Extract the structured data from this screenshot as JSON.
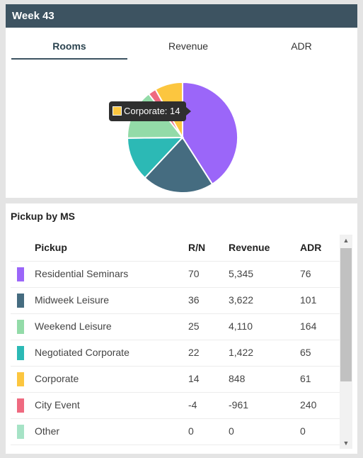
{
  "week_card": {
    "title": "Week 43",
    "tabs": [
      {
        "label": "Rooms",
        "active": true
      },
      {
        "label": "Revenue",
        "active": false
      },
      {
        "label": "ADR",
        "active": false
      }
    ],
    "tooltip": {
      "text": "Corporate: 14",
      "color": "#fcc63f"
    }
  },
  "chart_data": {
    "type": "pie",
    "slices": [
      {
        "label": "Residential Seminars",
        "value": 70,
        "color": "#9b66f9"
      },
      {
        "label": "Midweek Leisure",
        "value": 36,
        "color": "#456c80"
      },
      {
        "label": "Negotiated Corporate",
        "value": 22,
        "color": "#2cb9b5"
      },
      {
        "label": "Weekend Leisure",
        "value": 25,
        "color": "#93dba8"
      },
      {
        "label": "City Event",
        "value": 4,
        "color": "#ef6a80"
      },
      {
        "label": "Corporate",
        "value": 14,
        "color": "#fcc63f"
      }
    ]
  },
  "pickup": {
    "title": "Pickup by MS",
    "headers": {
      "name": "Pickup",
      "rn": "R/N",
      "revenue": "Revenue",
      "adr": "ADR"
    },
    "rows": [
      {
        "name": "Residential Seminars",
        "rn": "70",
        "revenue": "5,345",
        "adr": "76",
        "color": "#9b66f9"
      },
      {
        "name": "Midweek Leisure",
        "rn": "36",
        "revenue": "3,622",
        "adr": "101",
        "color": "#456c80"
      },
      {
        "name": "Weekend Leisure",
        "rn": "25",
        "revenue": "4,110",
        "adr": "164",
        "color": "#93dba8"
      },
      {
        "name": "Negotiated Corporate",
        "rn": "22",
        "revenue": "1,422",
        "adr": "65",
        "color": "#2cb9b5"
      },
      {
        "name": "Corporate",
        "rn": "14",
        "revenue": "848",
        "adr": "61",
        "color": "#fcc63f"
      },
      {
        "name": "City Event",
        "rn": "-4",
        "revenue": "-961",
        "adr": "240",
        "color": "#ef6a80"
      },
      {
        "name": "Other",
        "rn": "0",
        "revenue": "0",
        "adr": "0",
        "color": "#a6e3c6"
      }
    ]
  },
  "scrollbar": {
    "up_icon": "scroll-up-arrow-icon",
    "down_icon": "scroll-down-arrow-icon"
  }
}
